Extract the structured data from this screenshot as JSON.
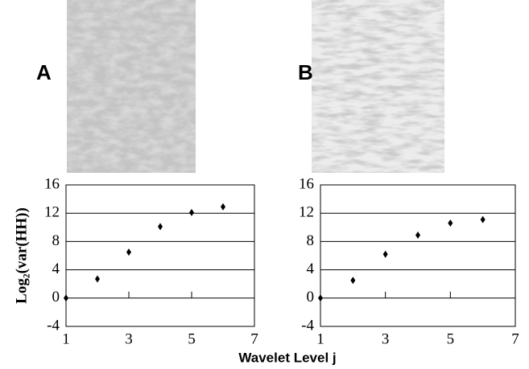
{
  "chart_data": [
    {
      "type": "scatter",
      "label": "A",
      "xlabel": "Wavelet Level j",
      "ylabel": "Log₂(var(HH))",
      "x": [
        1,
        2,
        3,
        4,
        5,
        6
      ],
      "values": [
        0,
        2.7,
        6.5,
        10.1,
        12.1,
        12.9
      ],
      "color": "#000000",
      "xlim": [
        1,
        7
      ],
      "xticks": [
        1,
        3,
        5,
        7
      ],
      "ylim": [
        -4,
        16
      ],
      "yticks": [
        -4,
        0,
        4,
        8,
        12,
        16
      ],
      "grid": true
    },
    {
      "type": "scatter",
      "label": "B",
      "x": [
        1,
        2,
        3,
        4,
        5,
        6
      ],
      "values": [
        0,
        2.5,
        6.2,
        8.9,
        10.6,
        11.1
      ],
      "color": "#000000",
      "xlim": [
        1,
        7
      ],
      "xticks": [
        1,
        3,
        5,
        7
      ],
      "ylim": [
        -4,
        16
      ],
      "yticks": [
        -4,
        0,
        4,
        8,
        12,
        16
      ],
      "grid": true
    }
  ]
}
